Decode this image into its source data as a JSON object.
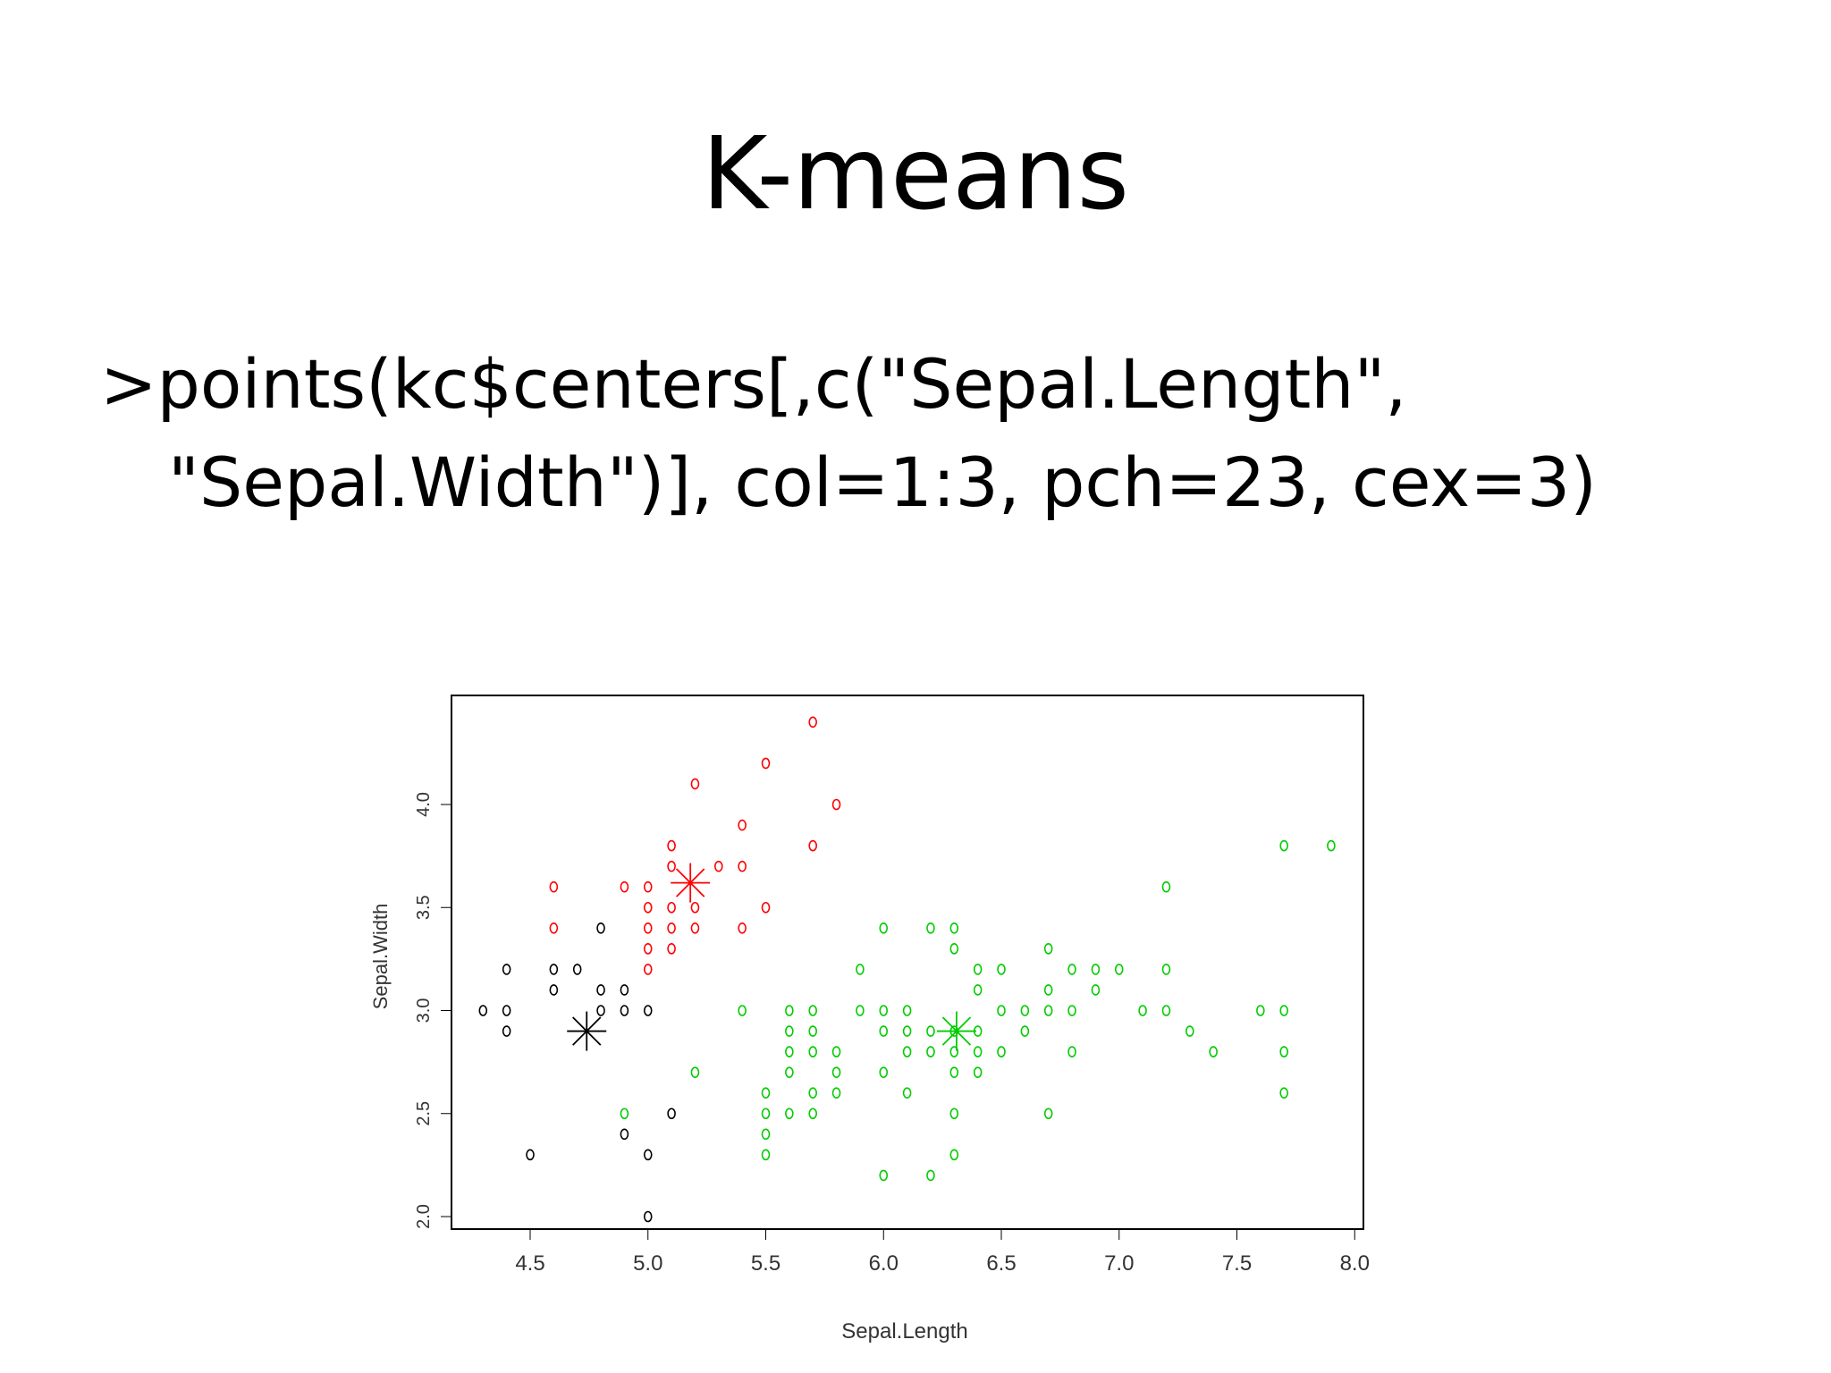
{
  "slide": {
    "title": "K-means",
    "code_lines": [
      ">points(kc$centers[,c(\"Sepal.Length\",",
      "\"Sepal.Width\")], col=1:3, pch=23, cex=3)"
    ]
  },
  "chart_data": {
    "type": "scatter",
    "xlabel": "Sepal.Length",
    "ylabel": "Sepal.Width",
    "xlim": [
      4.3,
      8.0
    ],
    "ylim": [
      2.0,
      4.4
    ],
    "xticks": [
      "4.5",
      "5.0",
      "5.5",
      "6.0",
      "6.5",
      "7.0",
      "7.5",
      "8.0"
    ],
    "yticks": [
      "2.0",
      "2.5",
      "3.0",
      "3.5",
      "4.0"
    ],
    "colors": {
      "cluster1": "#000000",
      "cluster2": "#ff0000",
      "cluster3": "#00cc00"
    },
    "series": [
      {
        "color": "#000000",
        "marker": "circle",
        "points": [
          [
            4.3,
            3.0
          ],
          [
            4.4,
            3.0
          ],
          [
            4.4,
            2.9
          ],
          [
            4.4,
            3.2
          ],
          [
            4.6,
            3.2
          ],
          [
            4.6,
            3.1
          ],
          [
            4.7,
            3.2
          ],
          [
            4.8,
            3.4
          ],
          [
            4.8,
            3.1
          ],
          [
            4.8,
            3.0
          ],
          [
            4.9,
            3.1
          ],
          [
            4.9,
            3.0
          ],
          [
            5.0,
            3.0
          ],
          [
            4.9,
            2.4
          ],
          [
            4.5,
            2.3
          ],
          [
            5.0,
            2.3
          ],
          [
            5.0,
            2.0
          ],
          [
            5.1,
            2.5
          ]
        ]
      },
      {
        "color": "#ff0000",
        "marker": "circle",
        "points": [
          [
            4.6,
            3.6
          ],
          [
            4.6,
            3.4
          ],
          [
            4.9,
            3.6
          ],
          [
            5.0,
            3.6
          ],
          [
            5.0,
            3.5
          ],
          [
            5.0,
            3.4
          ],
          [
            5.0,
            3.3
          ],
          [
            5.0,
            3.2
          ],
          [
            5.1,
            3.8
          ],
          [
            5.1,
            3.7
          ],
          [
            5.1,
            3.5
          ],
          [
            5.1,
            3.4
          ],
          [
            5.1,
            3.3
          ],
          [
            5.2,
            3.5
          ],
          [
            5.2,
            3.4
          ],
          [
            5.2,
            4.1
          ],
          [
            5.3,
            3.7
          ],
          [
            5.4,
            3.9
          ],
          [
            5.4,
            3.7
          ],
          [
            5.4,
            3.4
          ],
          [
            5.5,
            4.2
          ],
          [
            5.5,
            3.5
          ],
          [
            5.7,
            4.4
          ],
          [
            5.7,
            3.8
          ],
          [
            5.8,
            4.0
          ]
        ]
      },
      {
        "color": "#00cc00",
        "marker": "circle",
        "points": [
          [
            4.9,
            2.5
          ],
          [
            5.2,
            2.7
          ],
          [
            5.4,
            3.0
          ],
          [
            5.5,
            2.6
          ],
          [
            5.5,
            2.5
          ],
          [
            5.5,
            2.4
          ],
          [
            5.5,
            2.3
          ],
          [
            5.6,
            3.0
          ],
          [
            5.6,
            2.9
          ],
          [
            5.6,
            2.8
          ],
          [
            5.6,
            2.7
          ],
          [
            5.6,
            2.5
          ],
          [
            5.7,
            3.0
          ],
          [
            5.7,
            2.9
          ],
          [
            5.7,
            2.8
          ],
          [
            5.7,
            2.6
          ],
          [
            5.7,
            2.5
          ],
          [
            5.8,
            2.8
          ],
          [
            5.8,
            2.7
          ],
          [
            5.8,
            2.6
          ],
          [
            5.9,
            3.2
          ],
          [
            5.9,
            3.0
          ],
          [
            6.0,
            3.4
          ],
          [
            6.0,
            3.0
          ],
          [
            6.0,
            2.9
          ],
          [
            6.0,
            2.7
          ],
          [
            6.0,
            2.2
          ],
          [
            6.1,
            3.0
          ],
          [
            6.1,
            2.9
          ],
          [
            6.1,
            2.8
          ],
          [
            6.1,
            2.6
          ],
          [
            6.2,
            3.4
          ],
          [
            6.2,
            2.9
          ],
          [
            6.2,
            2.8
          ],
          [
            6.2,
            2.2
          ],
          [
            6.3,
            3.4
          ],
          [
            6.3,
            3.3
          ],
          [
            6.3,
            2.9
          ],
          [
            6.3,
            2.8
          ],
          [
            6.3,
            2.7
          ],
          [
            6.3,
            2.5
          ],
          [
            6.3,
            2.3
          ],
          [
            6.4,
            3.2
          ],
          [
            6.4,
            3.1
          ],
          [
            6.4,
            2.9
          ],
          [
            6.4,
            2.8
          ],
          [
            6.4,
            2.7
          ],
          [
            6.5,
            3.2
          ],
          [
            6.5,
            3.0
          ],
          [
            6.5,
            2.8
          ],
          [
            6.6,
            3.0
          ],
          [
            6.6,
            2.9
          ],
          [
            6.7,
            3.3
          ],
          [
            6.7,
            3.1
          ],
          [
            6.7,
            3.0
          ],
          [
            6.7,
            2.5
          ],
          [
            6.8,
            3.2
          ],
          [
            6.8,
            3.0
          ],
          [
            6.8,
            2.8
          ],
          [
            6.9,
            3.2
          ],
          [
            6.9,
            3.1
          ],
          [
            7.0,
            3.2
          ],
          [
            7.1,
            3.0
          ],
          [
            7.2,
            3.6
          ],
          [
            7.2,
            3.2
          ],
          [
            7.2,
            3.0
          ],
          [
            7.3,
            2.9
          ],
          [
            7.4,
            2.8
          ],
          [
            7.6,
            3.0
          ],
          [
            7.7,
            3.8
          ],
          [
            7.7,
            3.0
          ],
          [
            7.7,
            2.8
          ],
          [
            7.7,
            2.6
          ],
          [
            7.9,
            3.8
          ]
        ]
      }
    ],
    "centers": [
      {
        "x": 4.74,
        "y": 2.9,
        "color": "#000000"
      },
      {
        "x": 5.18,
        "y": 3.62,
        "color": "#ff0000"
      },
      {
        "x": 6.31,
        "y": 2.9,
        "color": "#00cc00"
      }
    ],
    "grid": false
  }
}
